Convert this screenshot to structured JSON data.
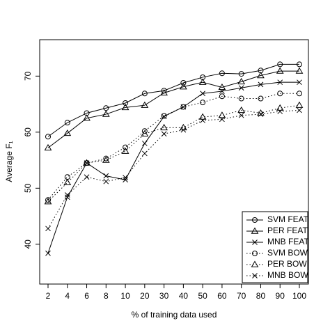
{
  "chart_data": {
    "type": "line",
    "x_label": "% of training data used",
    "y_label": "Average F₁",
    "categories": [
      "2",
      "4",
      "6",
      "8",
      "10",
      "20",
      "30",
      "40",
      "50",
      "60",
      "70",
      "80",
      "90",
      "100"
    ],
    "ylim": [
      32.9,
      76.5
    ],
    "yticks": [
      40,
      50,
      60,
      70
    ],
    "legend": "bottom-right",
    "series": [
      {
        "name": "SVM FEAT",
        "color": "#000000",
        "marker": "circle",
        "dash": "solid",
        "values": [
          59.2,
          61.7,
          63.4,
          64.3,
          65.2,
          66.9,
          67.4,
          68.8,
          69.8,
          70.5,
          70.4,
          71.0,
          72.1,
          72.1
        ]
      },
      {
        "name": "PER FEAT",
        "color": "#000000",
        "marker": "triangle",
        "dash": "solid",
        "values": [
          57.2,
          59.8,
          62.5,
          63.2,
          64.4,
          64.8,
          67.0,
          68.1,
          68.9,
          68.0,
          69.0,
          70.1,
          70.9,
          70.9
        ]
      },
      {
        "name": "MNB FEAT",
        "color": "#000000",
        "marker": "cross",
        "dash": "solid",
        "values": [
          38.4,
          48.4,
          54.5,
          52.2,
          51.5,
          58.0,
          62.8,
          64.5,
          66.9,
          67.3,
          67.9,
          68.5,
          68.9,
          68.9
        ]
      },
      {
        "name": "SVM BOW",
        "color": "#000000",
        "marker": "circle",
        "dash": "dotted",
        "values": [
          47.9,
          52.0,
          54.5,
          55.3,
          57.3,
          60.2,
          62.9,
          64.5,
          65.3,
          66.4,
          66.0,
          66.0,
          66.9,
          66.9
        ]
      },
      {
        "name": "PER BOW",
        "color": "#000000",
        "marker": "triangle",
        "dash": "dotted",
        "values": [
          47.6,
          51.0,
          54.5,
          55.0,
          56.6,
          59.7,
          60.8,
          60.8,
          62.7,
          63.0,
          63.9,
          63.4,
          64.3,
          64.8
        ]
      },
      {
        "name": "MNB BOW",
        "color": "#000000",
        "marker": "cross",
        "dash": "dotted",
        "values": [
          42.8,
          48.8,
          52.0,
          51.2,
          51.9,
          56.2,
          59.7,
          60.4,
          62.1,
          62.3,
          63.0,
          63.2,
          63.7,
          63.9
        ]
      }
    ]
  }
}
